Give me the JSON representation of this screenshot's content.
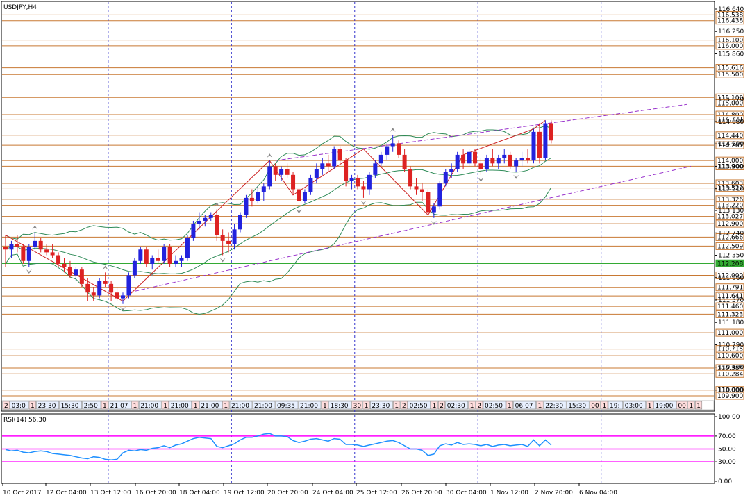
{
  "chart_data": [
    {
      "type": "candlestick",
      "title": "USDJPY,H4",
      "ylim": [
        109.9,
        116.64
      ],
      "price_ticks": [
        116.64,
        116.25,
        115.86,
        115.07,
        114.68,
        114.29,
        113.9,
        113.51,
        113.13,
        112.74,
        112.35,
        111.96,
        111.57,
        111.18,
        110.79,
        110.4,
        110.0
      ],
      "horizontal_levels": [
        {
          "value": 116.538,
          "label": "116.538"
        },
        {
          "value": 116.438,
          "label": "116.438"
        },
        {
          "value": 116.1,
          "label": "116.100"
        },
        {
          "value": 116.0,
          "label": "116.000"
        },
        {
          "value": 115.616,
          "label": "115.616"
        },
        {
          "value": 115.5,
          "label": "115.500"
        },
        {
          "value": 115.1,
          "label": "115.100"
        },
        {
          "value": 115.0,
          "label": "115.000"
        },
        {
          "value": 114.8,
          "label": "114.800"
        },
        {
          "value": 114.721,
          "label": "114.721"
        },
        {
          "value": 114.44,
          "label": "114.440"
        },
        {
          "value": 114.267,
          "label": "114.267"
        },
        {
          "value": 114.0,
          "label": "114.000"
        },
        {
          "value": 113.9,
          "label": "113.900"
        },
        {
          "value": 113.603,
          "label": "113.603"
        },
        {
          "value": 113.522,
          "label": "113.522"
        },
        {
          "value": 113.326,
          "label": "113.326"
        },
        {
          "value": 113.22,
          "label": "113.220"
        },
        {
          "value": 113.027,
          "label": "113.027"
        },
        {
          "value": 112.9,
          "label": "112.900"
        },
        {
          "value": 112.666,
          "label": "112.666"
        },
        {
          "value": 112.509,
          "label": "112.509"
        },
        {
          "value": 112.208,
          "label": "112.208",
          "color": "#33aa33"
        },
        {
          "value": 112.0,
          "label": "112.000"
        },
        {
          "value": 111.791,
          "label": "111.791"
        },
        {
          "value": 111.641,
          "label": "111.641"
        },
        {
          "value": 111.46,
          "label": "111.460"
        },
        {
          "value": 111.323,
          "label": "111.323"
        },
        {
          "value": 111.0,
          "label": "111.000"
        },
        {
          "value": 110.715,
          "label": "110.715"
        },
        {
          "value": 110.6,
          "label": "110.600"
        },
        {
          "value": 110.384,
          "label": "110.384"
        },
        {
          "value": 110.284,
          "label": "110.284"
        },
        {
          "value": 110.0,
          "label": "110.000"
        },
        {
          "value": 109.9,
          "label": "109.900"
        }
      ],
      "candles": [
        [
          112.5,
          112.7,
          112.15,
          112.45
        ],
        [
          112.45,
          112.6,
          112.3,
          112.55
        ],
        [
          112.55,
          112.7,
          112.4,
          112.5
        ],
        [
          112.5,
          112.55,
          112.2,
          112.25
        ],
        [
          112.25,
          112.55,
          112.15,
          112.5
        ],
        [
          112.5,
          112.75,
          112.45,
          112.6
        ],
        [
          112.6,
          112.65,
          112.4,
          112.45
        ],
        [
          112.45,
          112.55,
          112.35,
          112.4
        ],
        [
          112.4,
          112.55,
          112.3,
          112.35
        ],
        [
          112.35,
          112.4,
          112.15,
          112.2
        ],
        [
          112.2,
          112.3,
          112.05,
          112.15
        ],
        [
          112.15,
          112.25,
          111.95,
          112.0
        ],
        [
          112.0,
          112.15,
          111.9,
          112.1
        ],
        [
          112.1,
          112.15,
          111.8,
          111.85
        ],
        [
          111.85,
          111.95,
          111.55,
          111.7
        ],
        [
          111.7,
          111.8,
          111.55,
          111.65
        ],
        [
          111.65,
          111.95,
          111.6,
          111.9
        ],
        [
          111.9,
          112.05,
          111.8,
          111.85
        ],
        [
          111.85,
          111.9,
          111.55,
          111.7
        ],
        [
          111.7,
          111.8,
          111.55,
          111.6
        ],
        [
          111.6,
          111.7,
          111.5,
          111.65
        ],
        [
          111.65,
          112.05,
          111.6,
          112.0
        ],
        [
          112.0,
          112.3,
          111.95,
          112.25
        ],
        [
          112.25,
          112.5,
          112.2,
          112.45
        ],
        [
          112.45,
          112.5,
          112.15,
          112.2
        ],
        [
          112.2,
          112.35,
          112.1,
          112.3
        ],
        [
          112.3,
          112.45,
          112.2,
          112.25
        ],
        [
          112.25,
          112.55,
          112.2,
          112.5
        ],
        [
          112.5,
          112.55,
          112.15,
          112.2
        ],
        [
          112.2,
          112.35,
          112.15,
          112.25
        ],
        [
          112.25,
          112.35,
          112.15,
          112.3
        ],
        [
          112.3,
          112.7,
          112.25,
          112.65
        ],
        [
          112.65,
          112.95,
          112.6,
          112.9
        ],
        [
          112.9,
          113.1,
          112.8,
          112.95
        ],
        [
          112.95,
          113.05,
          112.85,
          113.0
        ],
        [
          113.0,
          113.1,
          112.95,
          113.05
        ],
        [
          113.05,
          113.15,
          112.6,
          112.7
        ],
        [
          112.7,
          112.8,
          112.35,
          112.6
        ],
        [
          112.6,
          112.75,
          112.4,
          112.55
        ],
        [
          112.55,
          112.9,
          112.45,
          112.8
        ],
        [
          112.8,
          113.1,
          112.75,
          113.05
        ],
        [
          113.05,
          113.4,
          113.0,
          113.35
        ],
        [
          113.35,
          113.5,
          113.2,
          113.3
        ],
        [
          113.3,
          113.55,
          113.25,
          113.45
        ],
        [
          113.45,
          113.6,
          113.3,
          113.55
        ],
        [
          113.55,
          114.0,
          113.5,
          113.9
        ],
        [
          113.9,
          113.95,
          113.65,
          113.75
        ],
        [
          113.75,
          113.9,
          113.65,
          113.85
        ],
        [
          113.85,
          113.95,
          113.7,
          113.75
        ],
        [
          113.75,
          113.8,
          113.4,
          113.5
        ],
        [
          113.5,
          113.6,
          113.2,
          113.3
        ],
        [
          113.3,
          113.5,
          113.25,
          113.45
        ],
        [
          113.45,
          113.75,
          113.4,
          113.7
        ],
        [
          113.7,
          113.95,
          113.6,
          113.85
        ],
        [
          113.85,
          114.05,
          113.75,
          113.95
        ],
        [
          113.95,
          114.1,
          113.8,
          113.9
        ],
        [
          113.9,
          114.25,
          113.85,
          114.2
        ],
        [
          114.2,
          114.25,
          113.95,
          114.0
        ],
        [
          114.0,
          114.05,
          113.55,
          113.65
        ],
        [
          113.65,
          113.75,
          113.5,
          113.7
        ],
        [
          113.7,
          113.75,
          113.5,
          113.55
        ],
        [
          113.55,
          113.65,
          113.35,
          113.5
        ],
        [
          113.5,
          113.8,
          113.4,
          113.75
        ],
        [
          113.75,
          114.0,
          113.7,
          113.95
        ],
        [
          113.95,
          114.15,
          113.9,
          114.1
        ],
        [
          114.1,
          114.3,
          114.0,
          114.25
        ],
        [
          114.25,
          114.45,
          114.15,
          114.3
        ],
        [
          114.3,
          114.35,
          114.05,
          114.1
        ],
        [
          114.1,
          114.2,
          113.8,
          113.85
        ],
        [
          113.85,
          113.9,
          113.5,
          113.55
        ],
        [
          113.55,
          113.7,
          113.4,
          113.5
        ],
        [
          113.5,
          113.6,
          113.3,
          113.45
        ],
        [
          113.45,
          113.5,
          113.05,
          113.1
        ],
        [
          113.1,
          113.25,
          113.0,
          113.2
        ],
        [
          113.2,
          113.65,
          113.15,
          113.6
        ],
        [
          113.6,
          113.85,
          113.55,
          113.8
        ],
        [
          113.8,
          113.95,
          113.7,
          113.85
        ],
        [
          113.85,
          114.15,
          113.8,
          114.1
        ],
        [
          114.1,
          114.2,
          113.85,
          113.95
        ],
        [
          113.95,
          114.2,
          113.9,
          114.15
        ],
        [
          114.15,
          114.2,
          113.9,
          113.95
        ],
        [
          113.95,
          114.05,
          113.75,
          113.85
        ],
        [
          113.85,
          114.1,
          113.8,
          114.05
        ],
        [
          114.05,
          114.2,
          113.9,
          113.95
        ],
        [
          113.95,
          114.1,
          113.85,
          114.05
        ],
        [
          114.05,
          114.2,
          113.95,
          114.1
        ],
        [
          114.1,
          114.15,
          113.85,
          113.9
        ],
        [
          113.9,
          114.05,
          113.8,
          114.0
        ],
        [
          114.0,
          114.15,
          113.9,
          114.05
        ],
        [
          114.05,
          114.2,
          113.95,
          114.0
        ],
        [
          114.0,
          114.55,
          113.95,
          114.5
        ],
        [
          114.5,
          114.65,
          113.95,
          114.05
        ],
        [
          114.05,
          114.7,
          114.0,
          114.65
        ],
        [
          114.65,
          114.7,
          114.3,
          114.35
        ]
      ],
      "x_labels": [
        "10 Oct 2017",
        "12 Oct 04:00",
        "13 Oct 12:00",
        "16 Oct 20:00",
        "18 Oct 04:00",
        "19 Oct 12:00",
        "20 Oct 20:00",
        "24 Oct 04:00",
        "25 Oct 12:00",
        "26 Oct 20:00",
        "30 Oct 04:00",
        "1 Nov 12:00",
        "2 Nov 20:00",
        "6 Nov 04:00"
      ],
      "vertical_day_separators": [
        13,
        34,
        55,
        76,
        97
      ],
      "session_strip_labels": [
        "2",
        "03:0",
        "1",
        "23:30",
        "15:30",
        "2:50",
        "1",
        "21:07",
        "1",
        "21:00",
        "1",
        "21:00",
        "1",
        "21:00",
        "1",
        "21:00",
        "21:00",
        "09:35",
        "21:00",
        "1",
        "18:30",
        "30",
        "1",
        "23:30",
        "1",
        "2",
        "02:50",
        "1",
        "2",
        "02:30",
        "1",
        "2",
        "02:50",
        "1",
        "06:07",
        "1",
        "22:30",
        "15:30",
        "00",
        "1",
        "19:",
        "03:00",
        "1",
        "19:00",
        "00",
        "1",
        "02:00",
        "1",
        "19:0",
        "08",
        "19"
      ]
    },
    {
      "type": "line",
      "title": "RSI(14) 56.30",
      "ylim": [
        0,
        100
      ],
      "y_ticks": [
        100.0,
        70.0,
        50.0,
        30.0,
        0.0
      ],
      "levels": [
        70,
        50,
        30
      ],
      "values": [
        49,
        47,
        48,
        45,
        44,
        46,
        47,
        46,
        43,
        42,
        41,
        40,
        38,
        36,
        35,
        38,
        37,
        34,
        33,
        34,
        44,
        48,
        47,
        49,
        48,
        51,
        52,
        55,
        52,
        56,
        58,
        62,
        66,
        68,
        67,
        66,
        54,
        52,
        55,
        58,
        64,
        68,
        68,
        70,
        73,
        74,
        70,
        70,
        69,
        63,
        60,
        62,
        65,
        66,
        64,
        62,
        66,
        65,
        57,
        57,
        56,
        54,
        56,
        58,
        60,
        62,
        63,
        60,
        55,
        50,
        50,
        48,
        40,
        42,
        55,
        58,
        56,
        60,
        57,
        58,
        57,
        55,
        57,
        54,
        56,
        57,
        55,
        56,
        57,
        54,
        64,
        55,
        64,
        56
      ]
    }
  ]
}
